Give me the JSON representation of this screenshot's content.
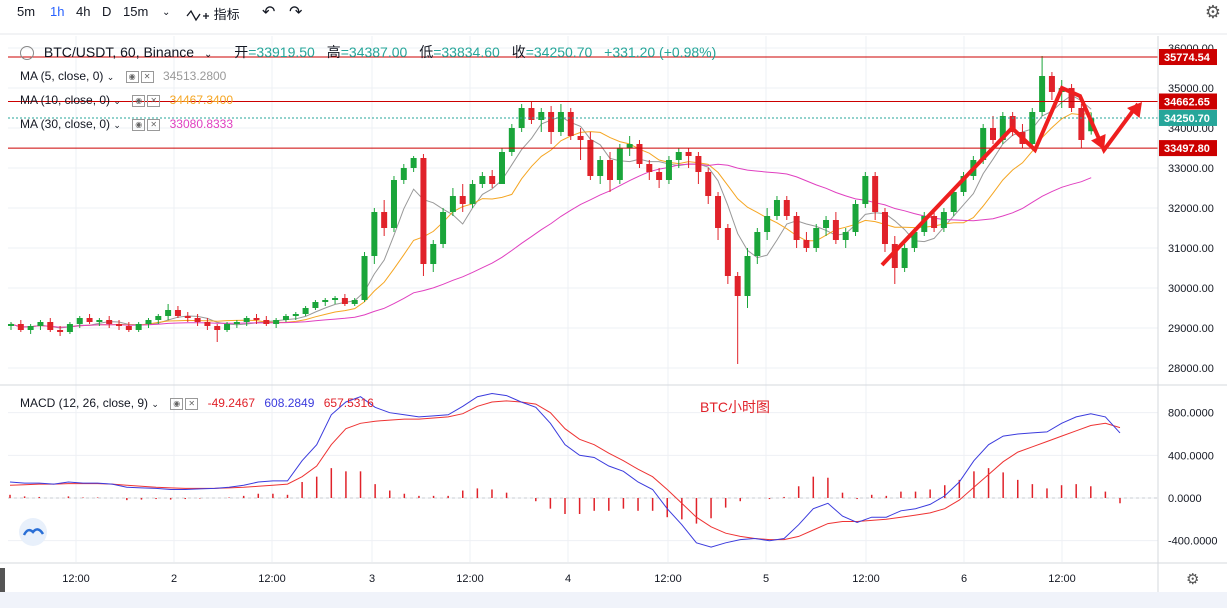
{
  "toolbar": {
    "intervals": [
      "5m",
      "1h",
      "4h",
      "D",
      "15m"
    ],
    "active": "1h",
    "indicator_label": "指标",
    "chevron": "chevron-down-icon",
    "indicator_icon": "indicator-icon",
    "undo_icon": "undo-icon",
    "redo_icon": "redo-icon",
    "settings_icon": "gear-icon"
  },
  "header": {
    "symbol": "BTC/USDT, 60, Binance",
    "open_label": "开",
    "open": "33919.50",
    "high_label": "高",
    "high": "34387.00",
    "low_label": "低",
    "low": "33834.60",
    "close_label": "收",
    "close": "34250.70",
    "change": "+331.20 (+0.98%)"
  },
  "indicators": [
    {
      "label": "MA (5, close, 0)",
      "value": "34513.2800",
      "color": "#999999"
    },
    {
      "label": "MA (10, close, 0)",
      "value": "34467.3400",
      "color": "#f5a623"
    },
    {
      "label": "MA (30, close, 0)",
      "value": "33080.8333",
      "color": "#e040c0"
    }
  ],
  "macd": {
    "label": "MACD (12, 26, close, 9)",
    "hist": "-49.2467",
    "macd": "608.2849",
    "signal": "657.5316",
    "annotation": "BTC小时图"
  },
  "colors": {
    "up": "#26a69a",
    "up_candle": "#1aa53a",
    "down": "#e0222a",
    "level_line": "#cc0000",
    "macd_line": "#3b3bdd",
    "signal_line": "#ee3333",
    "ma5": "#999999",
    "ma10": "#f5a623",
    "ma30": "#e040c0"
  },
  "chart_data": [
    {
      "type": "candlestick",
      "title": "BTC/USDT, 60, Binance",
      "y_ticks": [
        36000,
        35000,
        34000,
        33000,
        32000,
        31000,
        30000,
        29000,
        28000
      ],
      "ylim": [
        27600,
        36300
      ],
      "x_ticks": [
        "12:00",
        "2",
        "12:00",
        "3",
        "12:00",
        "4",
        "12:00",
        "5",
        "12:00",
        "6",
        "12:00"
      ],
      "price_labels": [
        {
          "value": "35774.54",
          "style": "level"
        },
        {
          "value": "34662.65",
          "style": "level"
        },
        {
          "value": "34250.70",
          "style": "last"
        },
        {
          "value": "33497.80",
          "style": "level"
        }
      ],
      "levels": [
        35774.54,
        34662.65,
        33497.8
      ],
      "candles": [
        [
          29050,
          29150,
          28950,
          29100
        ],
        [
          29100,
          29200,
          28900,
          28950
        ],
        [
          28950,
          29100,
          28850,
          29050
        ],
        [
          29050,
          29200,
          28950,
          29150
        ],
        [
          29150,
          29250,
          28900,
          28950
        ],
        [
          28950,
          29050,
          28800,
          28900
        ],
        [
          28900,
          29150,
          28850,
          29100
        ],
        [
          29100,
          29300,
          29000,
          29250
        ],
        [
          29250,
          29350,
          29100,
          29150
        ],
        [
          29150,
          29250,
          29050,
          29200
        ],
        [
          29200,
          29300,
          29000,
          29100
        ],
        [
          29100,
          29200,
          28950,
          29050
        ],
        [
          29050,
          29150,
          28900,
          28950
        ],
        [
          28950,
          29150,
          28900,
          29100
        ],
        [
          29100,
          29250,
          29000,
          29200
        ],
        [
          29200,
          29350,
          29100,
          29300
        ],
        [
          29300,
          29600,
          29200,
          29450
        ],
        [
          29450,
          29550,
          29250,
          29300
        ],
        [
          29300,
          29400,
          29150,
          29250
        ],
        [
          29250,
          29350,
          29050,
          29150
        ],
        [
          29150,
          29250,
          28950,
          29050
        ],
        [
          29050,
          29100,
          28650,
          28950
        ],
        [
          28950,
          29150,
          28900,
          29100
        ],
        [
          29100,
          29200,
          29000,
          29150
        ],
        [
          29150,
          29300,
          29050,
          29250
        ],
        [
          29250,
          29350,
          29100,
          29200
        ],
        [
          29200,
          29300,
          29050,
          29100
        ],
        [
          29100,
          29250,
          29000,
          29200
        ],
        [
          29200,
          29350,
          29150,
          29300
        ],
        [
          29300,
          29400,
          29200,
          29350
        ],
        [
          29350,
          29550,
          29300,
          29500
        ],
        [
          29500,
          29700,
          29450,
          29650
        ],
        [
          29650,
          29750,
          29550,
          29700
        ],
        [
          29700,
          29800,
          29600,
          29750
        ],
        [
          29750,
          29850,
          29550,
          29600
        ],
        [
          29600,
          29750,
          29550,
          29700
        ],
        [
          29700,
          30900,
          29650,
          30800
        ],
        [
          30800,
          32000,
          30600,
          31900
        ],
        [
          31900,
          32200,
          31300,
          31500
        ],
        [
          31500,
          32800,
          31400,
          32700
        ],
        [
          32700,
          33100,
          32600,
          33000
        ],
        [
          33000,
          33300,
          32900,
          33250
        ],
        [
          33250,
          33350,
          30300,
          30600
        ],
        [
          30600,
          31200,
          30400,
          31100
        ],
        [
          31100,
          32000,
          31000,
          31900
        ],
        [
          31900,
          32500,
          31800,
          32300
        ],
        [
          32300,
          32600,
          31900,
          32100
        ],
        [
          32100,
          32700,
          32000,
          32600
        ],
        [
          32600,
          32900,
          32500,
          32800
        ],
        [
          32800,
          32950,
          32500,
          32600
        ],
        [
          32600,
          33500,
          32600,
          33400
        ],
        [
          33400,
          34100,
          33300,
          34000
        ],
        [
          34000,
          34600,
          33900,
          34500
        ],
        [
          34500,
          34650,
          34100,
          34200
        ],
        [
          34200,
          34500,
          33900,
          34400
        ],
        [
          34400,
          34550,
          33600,
          33900
        ],
        [
          33900,
          34600,
          33800,
          34400
        ],
        [
          34400,
          34500,
          33700,
          33800
        ],
        [
          33800,
          34000,
          33200,
          33700
        ],
        [
          33700,
          33900,
          32700,
          32800
        ],
        [
          32800,
          33300,
          32600,
          33200
        ],
        [
          33200,
          33400,
          32400,
          32700
        ],
        [
          32700,
          33600,
          32600,
          33500
        ],
        [
          33500,
          33800,
          33300,
          33600
        ],
        [
          33600,
          33700,
          33000,
          33100
        ],
        [
          33100,
          33200,
          32700,
          32900
        ],
        [
          32900,
          33000,
          32500,
          32700
        ],
        [
          32700,
          33300,
          32600,
          33200
        ],
        [
          33200,
          33500,
          33000,
          33400
        ],
        [
          33400,
          33500,
          33000,
          33300
        ],
        [
          33300,
          33400,
          32600,
          32900
        ],
        [
          32900,
          33000,
          32100,
          32300
        ],
        [
          32300,
          32400,
          31200,
          31500
        ],
        [
          31500,
          31600,
          30100,
          30300
        ],
        [
          30300,
          30400,
          28100,
          29800
        ],
        [
          29800,
          31000,
          29500,
          30800
        ],
        [
          30800,
          31500,
          30600,
          31400
        ],
        [
          31400,
          32000,
          31200,
          31800
        ],
        [
          31800,
          32300,
          31700,
          32200
        ],
        [
          32200,
          32300,
          31700,
          31800
        ],
        [
          31800,
          31900,
          31000,
          31200
        ],
        [
          31200,
          31400,
          30900,
          31000
        ],
        [
          31000,
          31600,
          30900,
          31500
        ],
        [
          31500,
          31800,
          31300,
          31700
        ],
        [
          31700,
          31900,
          31100,
          31200
        ],
        [
          31200,
          31500,
          31000,
          31400
        ],
        [
          31400,
          32200,
          31300,
          32100
        ],
        [
          32100,
          32900,
          32000,
          32800
        ],
        [
          32800,
          32900,
          31700,
          31900
        ],
        [
          31900,
          32000,
          30900,
          31100
        ],
        [
          31100,
          31300,
          30100,
          30500
        ],
        [
          30500,
          31100,
          30400,
          31000
        ],
        [
          31000,
          31500,
          30900,
          31400
        ],
        [
          31400,
          31900,
          31300,
          31800
        ],
        [
          31800,
          31900,
          31400,
          31500
        ],
        [
          31500,
          32000,
          31400,
          31900
        ],
        [
          31900,
          32500,
          31800,
          32400
        ],
        [
          32400,
          32900,
          32300,
          32800
        ],
        [
          32800,
          33300,
          32700,
          33200
        ],
        [
          33200,
          34100,
          33100,
          34000
        ],
        [
          34000,
          34300,
          33600,
          33700
        ],
        [
          33700,
          34400,
          33600,
          34300
        ],
        [
          34300,
          34400,
          33800,
          33900
        ],
        [
          33900,
          34100,
          33500,
          33600
        ],
        [
          33600,
          34500,
          33500,
          34400
        ],
        [
          34400,
          35800,
          34300,
          35300
        ],
        [
          35300,
          35400,
          34700,
          34900
        ],
        [
          34900,
          35200,
          34500,
          35000
        ],
        [
          35000,
          35100,
          34400,
          34500
        ],
        [
          34500,
          34600,
          33500,
          33700
        ],
        [
          33919.5,
          34387,
          33834.6,
          34250.7
        ]
      ]
    },
    {
      "type": "macd",
      "title": "MACD (12, 26, close, 9)",
      "y_ticks": [
        800,
        400,
        0,
        -400
      ],
      "ylim": [
        -600,
        1050
      ],
      "series": [
        {
          "name": "MACD",
          "values": [
            150,
            140,
            140,
            130,
            150,
            140,
            140,
            130,
            100,
            95,
            90,
            80,
            80,
            85,
            90,
            100,
            120,
            150,
            160,
            160,
            350,
            500,
            780,
            900,
            950,
            850,
            800,
            780,
            760,
            770,
            780,
            860,
            950,
            980,
            960,
            900,
            850,
            700,
            500,
            400,
            380,
            300,
            250,
            150,
            80,
            -100,
            -250,
            -420,
            -460,
            -420,
            -390,
            -380,
            -400,
            -380,
            -250,
            -100,
            -50,
            -170,
            -230,
            -180,
            -180,
            -120,
            -100,
            -60,
            20,
            150,
            350,
            500,
            580,
            600,
            610,
            620,
            700,
            760,
            790,
            760,
            610
          ]
        },
        {
          "name": "Signal",
          "values": [
            120,
            125,
            130,
            130,
            135,
            135,
            135,
            130,
            120,
            110,
            100,
            95,
            90,
            90,
            90,
            95,
            100,
            110,
            120,
            130,
            200,
            300,
            500,
            650,
            700,
            720,
            730,
            740,
            740,
            750,
            760,
            790,
            860,
            900,
            910,
            900,
            880,
            800,
            650,
            550,
            500,
            420,
            350,
            270,
            200,
            80,
            -50,
            -180,
            -270,
            -330,
            -360,
            -380,
            -390,
            -390,
            -360,
            -300,
            -240,
            -220,
            -220,
            -210,
            -200,
            -180,
            -160,
            -140,
            -100,
            -20,
            100,
            220,
            340,
            430,
            480,
            530,
            580,
            630,
            680,
            700,
            660
          ]
        },
        {
          "name": "Histogram",
          "values": [
            30,
            15,
            10,
            0,
            15,
            5,
            5,
            0,
            -20,
            -15,
            -10,
            -15,
            -10,
            -5,
            0,
            5,
            20,
            40,
            40,
            30,
            150,
            200,
            280,
            250,
            250,
            130,
            70,
            40,
            20,
            20,
            20,
            70,
            90,
            80,
            50,
            0,
            -30,
            -100,
            -150,
            -150,
            -120,
            -120,
            -100,
            -120,
            -120,
            -180,
            -200,
            -240,
            -190,
            -90,
            -30,
            0,
            -10,
            10,
            110,
            200,
            190,
            50,
            -10,
            30,
            20,
            60,
            60,
            80,
            120,
            170,
            250,
            280,
            240,
            170,
            130,
            90,
            120,
            130,
            110,
            60,
            -49.2467
          ]
        }
      ],
      "annotation": "BTC小时图"
    }
  ]
}
